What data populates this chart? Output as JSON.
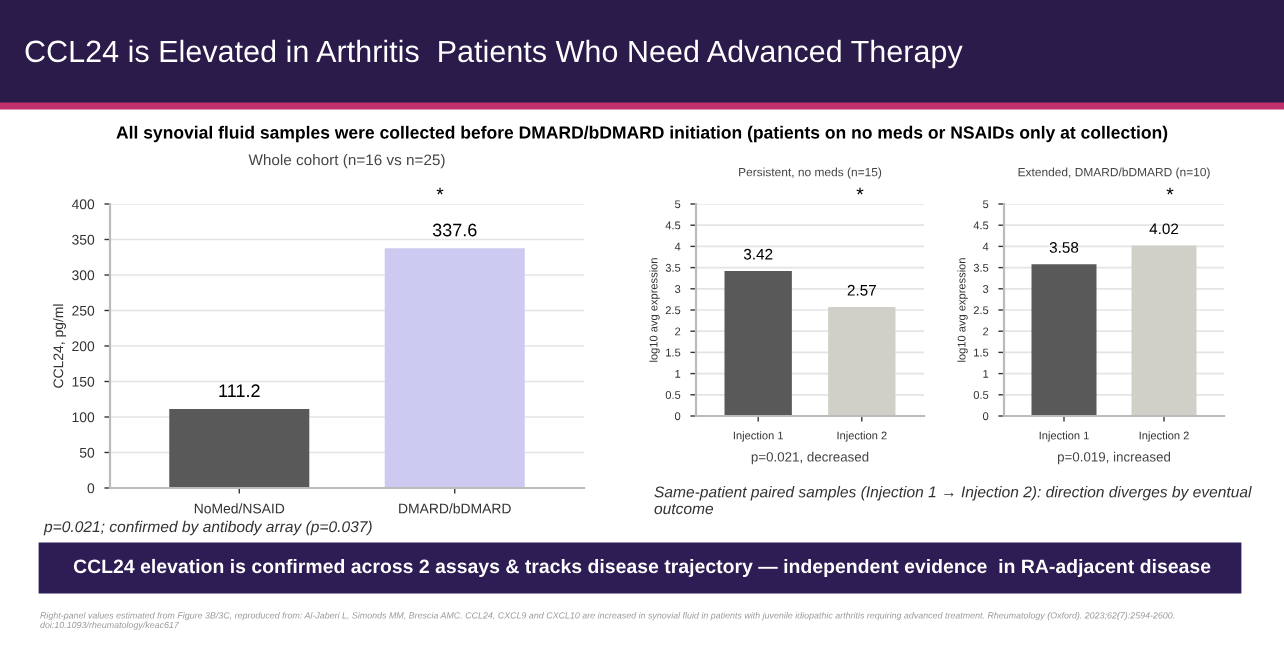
{
  "chart_data": [
    {
      "type": "bar",
      "title": "Whole cohort (n=16 vs n=25)",
      "ylabel": "CCL24, pg/ml",
      "categories": [
        "NoMed/NSAID",
        "DMARD/bDMARD"
      ],
      "values": [
        111.2,
        337.6
      ],
      "colors": [
        "#595959",
        "#cccaf0"
      ],
      "ylim": [
        0,
        400
      ],
      "yticks": [
        0,
        50,
        100,
        150,
        200,
        250,
        300,
        350,
        400
      ],
      "grid": "y",
      "data_labels": true,
      "annotations": [
        "CCL24 is Elevated in Arthritis  Patients Who Need Advanced Therapy",
        "All synovial fluid samples were collected before DMARD/bDMARD initiation (patients on no meds or NSAIDs only at collection)",
        "*",
        "p=0.021; confirmed by antibody array (p=0.037)",
        "CCL24 elevation is confirmed across 2 assays & tracks disease trajectory — independent evidence  in RA-adjacent disease",
        "Right-panel values estimated from Figure 3B/3C, reproduced from: Al-Jaberi L, Simonds MM, Brescia AMC. CCL24, CXCL9 and CXCL10 are increased in synovial fluid in patients with juvenile idiopathic arthritis requiring advanced treatment. Rheumatology (Oxford). 2023;62(7):2594-2600. doi:10.1093/rheumatology/keac617"
      ]
    },
    {
      "type": "bar",
      "title": "Persistent, no meds (n=15)",
      "ylabel": "log10 avg expression",
      "categories": [
        "Injection 1",
        "Injection 2"
      ],
      "values": [
        3.42,
        2.57
      ],
      "colors": [
        "#595959",
        "#d0cfc8"
      ],
      "ylim": [
        0,
        5
      ],
      "yticks": [
        0,
        0.5,
        1,
        1.5,
        2,
        2.5,
        3,
        3.5,
        4,
        4.5,
        5
      ],
      "grid": "y",
      "data_labels": true,
      "annotations": [
        "*",
        "p=0.021, decreased",
        "Same-patient paired samples (Injection 1 → Injection 2): direction diverges by eventual outcome"
      ]
    },
    {
      "type": "bar",
      "title": "Extended, DMARD/bDMARD (n=10)",
      "ylabel": "log10 avg expression",
      "categories": [
        "Injection 1",
        "Injection 2"
      ],
      "values": [
        3.58,
        4.02
      ],
      "colors": [
        "#595959",
        "#d0cfc8"
      ],
      "ylim": [
        0,
        5
      ],
      "yticks": [
        0,
        0.5,
        1,
        1.5,
        2,
        2.5,
        3,
        3.5,
        4,
        4.5,
        5
      ],
      "grid": "y",
      "data_labels": true,
      "annotations": [
        "*",
        "p=0.019, increased"
      ]
    }
  ]
}
